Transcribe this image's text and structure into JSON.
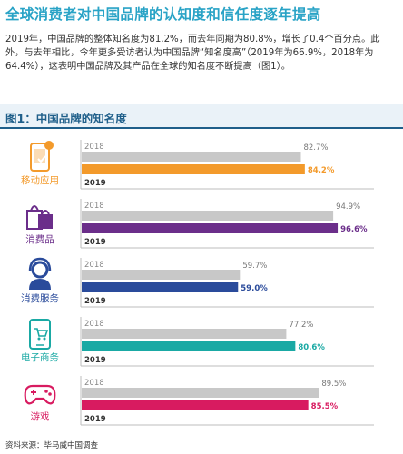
{
  "title": "全球消费者对中国品牌的认知度和信任度逐年提高",
  "intro": "2019年，中国品牌的整体知名度为81.2%，而去年同期为80.8%，增长了0.4个百分点。此外，与去年相比，今年更多受访者认为中国品牌“知名度高”（2019年为66.9%，2018年为64.4%），这表明中国品牌及其产品在全球的知名度不断提高（图1）。",
  "figure_title": "图1：中国品牌的知名度",
  "source": "资料来源：毕马威中国调查",
  "chart_data": {
    "type": "bar",
    "categories": [
      "移动应用",
      "消费品",
      "消费服务",
      "电子商务",
      "游戏"
    ],
    "icons": [
      "mobile-app-icon",
      "shopping-bags-icon",
      "customer-service-icon",
      "ecommerce-phone-icon",
      "gamepad-icon"
    ],
    "series": [
      {
        "name": "2018",
        "values": [
          82.7,
          94.9,
          59.7,
          77.2,
          89.5
        ],
        "color": "#c8c8c8"
      },
      {
        "name": "2019",
        "values": [
          84.2,
          96.6,
          59.0,
          80.6,
          85.5
        ],
        "colors": [
          "#f39a2b",
          "#6b2e8a",
          "#2a4b9b",
          "#1aa9a4",
          "#d81b60"
        ]
      }
    ],
    "value_labels": {
      "2018": [
        "82.7%",
        "94.9%",
        "59.7%",
        "77.2%",
        "89.5%"
      ],
      "2019": [
        "84.2%",
        "96.6%",
        "59.0%",
        "80.6%",
        "85.5%"
      ]
    },
    "xlim": [
      0,
      100
    ]
  }
}
